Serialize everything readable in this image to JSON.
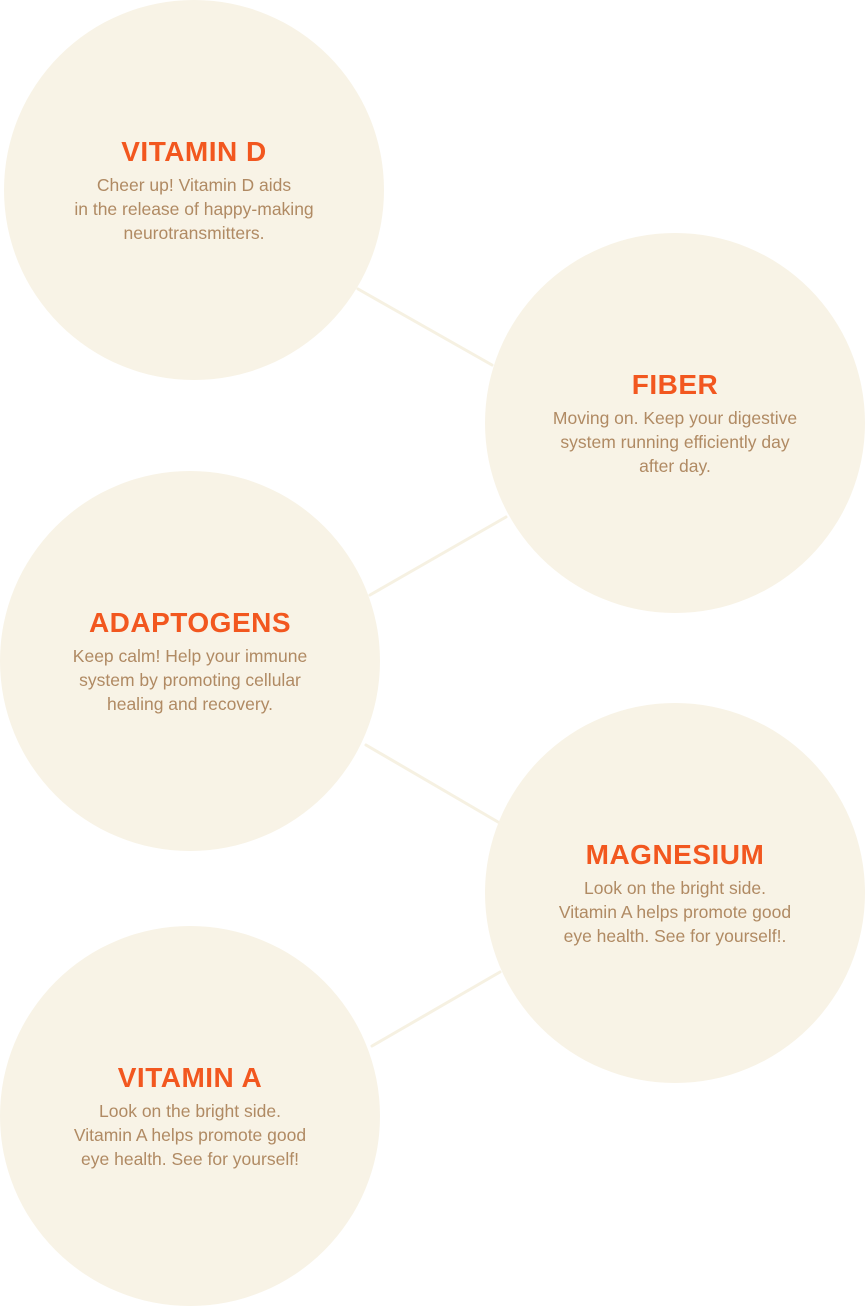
{
  "circles": [
    {
      "title": "VITAMIN D",
      "description": "Cheer up! Vitamin D aids\nin the release of happy-making\nneurotransmitters."
    },
    {
      "title": "FIBER",
      "description": "Moving on. Keep your digestive\nsystem running efficiently day\nafter day."
    },
    {
      "title": "ADAPTOGENS",
      "description": "Keep calm! Help your immune\nsystem by promoting cellular\nhealing and recovery."
    },
    {
      "title": "MAGNESIUM",
      "description": "Look on the bright side.\nVitamin A helps promote good\neye health. See for yourself!."
    },
    {
      "title": "VITAMIN A",
      "description": "Look on the bright side.\nVitamin A helps promote good\neye health. See for yourself!"
    }
  ],
  "colors": {
    "circle_fill": "#f8f3e6",
    "title": "#f2571f",
    "description": "#b08a63",
    "connector": "#f6f1e2"
  }
}
